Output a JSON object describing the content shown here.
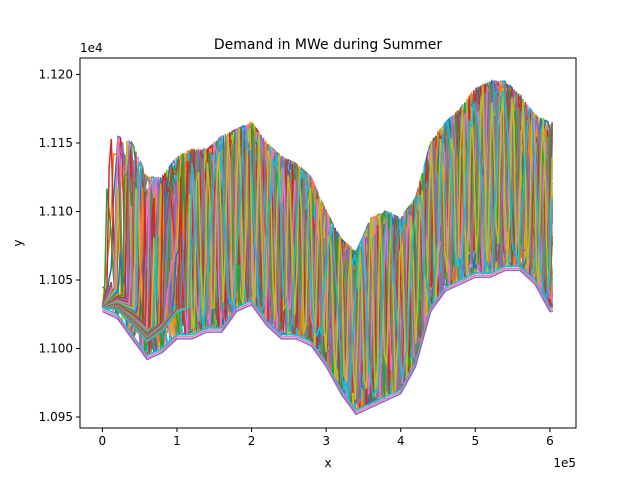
{
  "chart_data": {
    "type": "line",
    "title": "Demand in MWe during Summer",
    "xlabel": "x",
    "ylabel": "y",
    "x_offset_label": "1e5",
    "y_offset_label": "1e4",
    "xlim": [
      -30000,
      635000
    ],
    "ylim": [
      10942,
      11212
    ],
    "x_ticks": [
      0,
      100000,
      200000,
      300000,
      400000,
      500000,
      600000
    ],
    "x_tick_labels": [
      "0",
      "1",
      "2",
      "3",
      "4",
      "5",
      "6"
    ],
    "y_ticks": [
      10950,
      11000,
      11050,
      11100,
      11150,
      11200
    ],
    "y_tick_labels": [
      "1.095",
      "1.100",
      "1.105",
      "1.110",
      "1.115",
      "1.120"
    ],
    "grid": false,
    "series_colors": [
      "#1f77b4",
      "#ff7f0e",
      "#2ca02c",
      "#d62728",
      "#9467bd",
      "#8c564b",
      "#e377c2",
      "#7f7f7f",
      "#bcbd22",
      "#17becf"
    ],
    "envelope": {
      "x": [
        0,
        20000,
        40000,
        60000,
        80000,
        100000,
        120000,
        140000,
        160000,
        180000,
        200000,
        220000,
        240000,
        260000,
        280000,
        300000,
        320000,
        340000,
        360000,
        380000,
        400000,
        420000,
        440000,
        460000,
        480000,
        500000,
        520000,
        540000,
        560000,
        580000,
        600000,
        605000
      ],
      "lower": [
        11030,
        11025,
        11010,
        10995,
        11000,
        11010,
        11010,
        11015,
        11015,
        11030,
        11035,
        11020,
        11010,
        11010,
        11005,
        10990,
        10970,
        10955,
        10960,
        10965,
        10970,
        10990,
        11030,
        11045,
        11050,
        11055,
        11055,
        11060,
        11060,
        11050,
        11030,
        11030
      ],
      "upper": [
        11150,
        11155,
        11150,
        11125,
        11125,
        11140,
        11145,
        11145,
        11155,
        11160,
        11165,
        11150,
        11140,
        11135,
        11125,
        11100,
        11080,
        11070,
        11095,
        11100,
        11095,
        11110,
        11150,
        11165,
        11175,
        11190,
        11195,
        11195,
        11185,
        11170,
        11165,
        11165
      ]
    }
  }
}
